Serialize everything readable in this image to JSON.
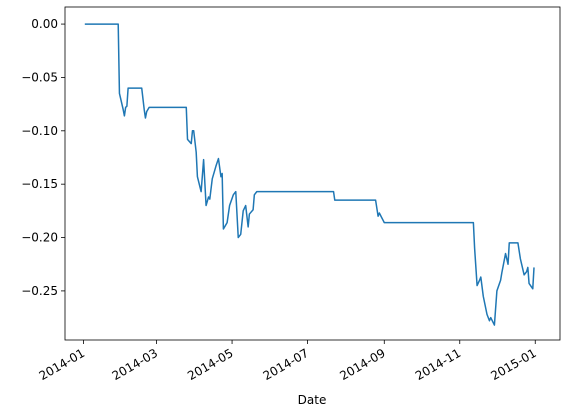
{
  "chart_data": {
    "type": "line",
    "x_label": "Date",
    "color": "#1f77b4",
    "x": [
      1,
      28,
      29,
      32,
      33,
      34,
      35,
      36,
      47,
      49,
      50,
      51,
      53,
      83,
      84,
      87,
      88,
      89,
      91,
      92,
      95,
      97,
      99,
      101,
      102,
      104,
      107,
      109,
      111,
      112,
      113,
      116,
      118,
      121,
      123,
      125,
      127,
      129,
      131,
      133,
      134,
      137,
      138,
      140,
      202,
      203,
      236,
      238,
      239,
      243,
      315,
      316,
      318,
      320,
      321,
      323,
      326,
      328,
      329,
      332,
      334,
      337,
      338,
      341,
      343,
      344,
      351,
      353,
      354,
      356,
      358,
      359,
      360,
      363,
      364
    ],
    "values": [
      0,
      0,
      -0.065,
      -0.08,
      -0.086,
      -0.078,
      -0.077,
      -0.06,
      -0.06,
      -0.08,
      -0.088,
      -0.082,
      -0.078,
      -0.078,
      -0.108,
      -0.112,
      -0.1,
      -0.1,
      -0.12,
      -0.143,
      -0.157,
      -0.127,
      -0.17,
      -0.162,
      -0.164,
      -0.145,
      -0.133,
      -0.126,
      -0.143,
      -0.14,
      -0.192,
      -0.186,
      -0.17,
      -0.16,
      -0.157,
      -0.2,
      -0.197,
      -0.175,
      -0.17,
      -0.19,
      -0.178,
      -0.174,
      -0.16,
      -0.157,
      -0.157,
      -0.165,
      -0.165,
      -0.18,
      -0.177,
      -0.186,
      -0.186,
      -0.21,
      -0.245,
      -0.24,
      -0.237,
      -0.255,
      -0.272,
      -0.278,
      -0.275,
      -0.282,
      -0.25,
      -0.24,
      -0.233,
      -0.215,
      -0.225,
      -0.205,
      -0.205,
      -0.22,
      -0.225,
      -0.235,
      -0.232,
      -0.228,
      -0.243,
      -0.248,
      -0.228
    ],
    "xlim": [
      -15,
      385
    ],
    "xticks": [
      {
        "value": 0,
        "label": "2014-01"
      },
      {
        "value": 59,
        "label": "2014-03"
      },
      {
        "value": 120,
        "label": "2014-05"
      },
      {
        "value": 181,
        "label": "2014-07"
      },
      {
        "value": 243,
        "label": "2014-09"
      },
      {
        "value": 304,
        "label": "2014-11"
      },
      {
        "value": 365,
        "label": "2015-01"
      }
    ],
    "ylim": [
      -0.296,
      0.016
    ],
    "yticks": [
      {
        "value": 0,
        "label": "0.00"
      },
      {
        "value": -0.05,
        "label": "−0.05"
      },
      {
        "value": -0.1,
        "label": "−0.10"
      },
      {
        "value": -0.15,
        "label": "−0.15"
      },
      {
        "value": -0.2,
        "label": "−0.20"
      },
      {
        "value": -0.25,
        "label": "−0.25"
      }
    ]
  }
}
